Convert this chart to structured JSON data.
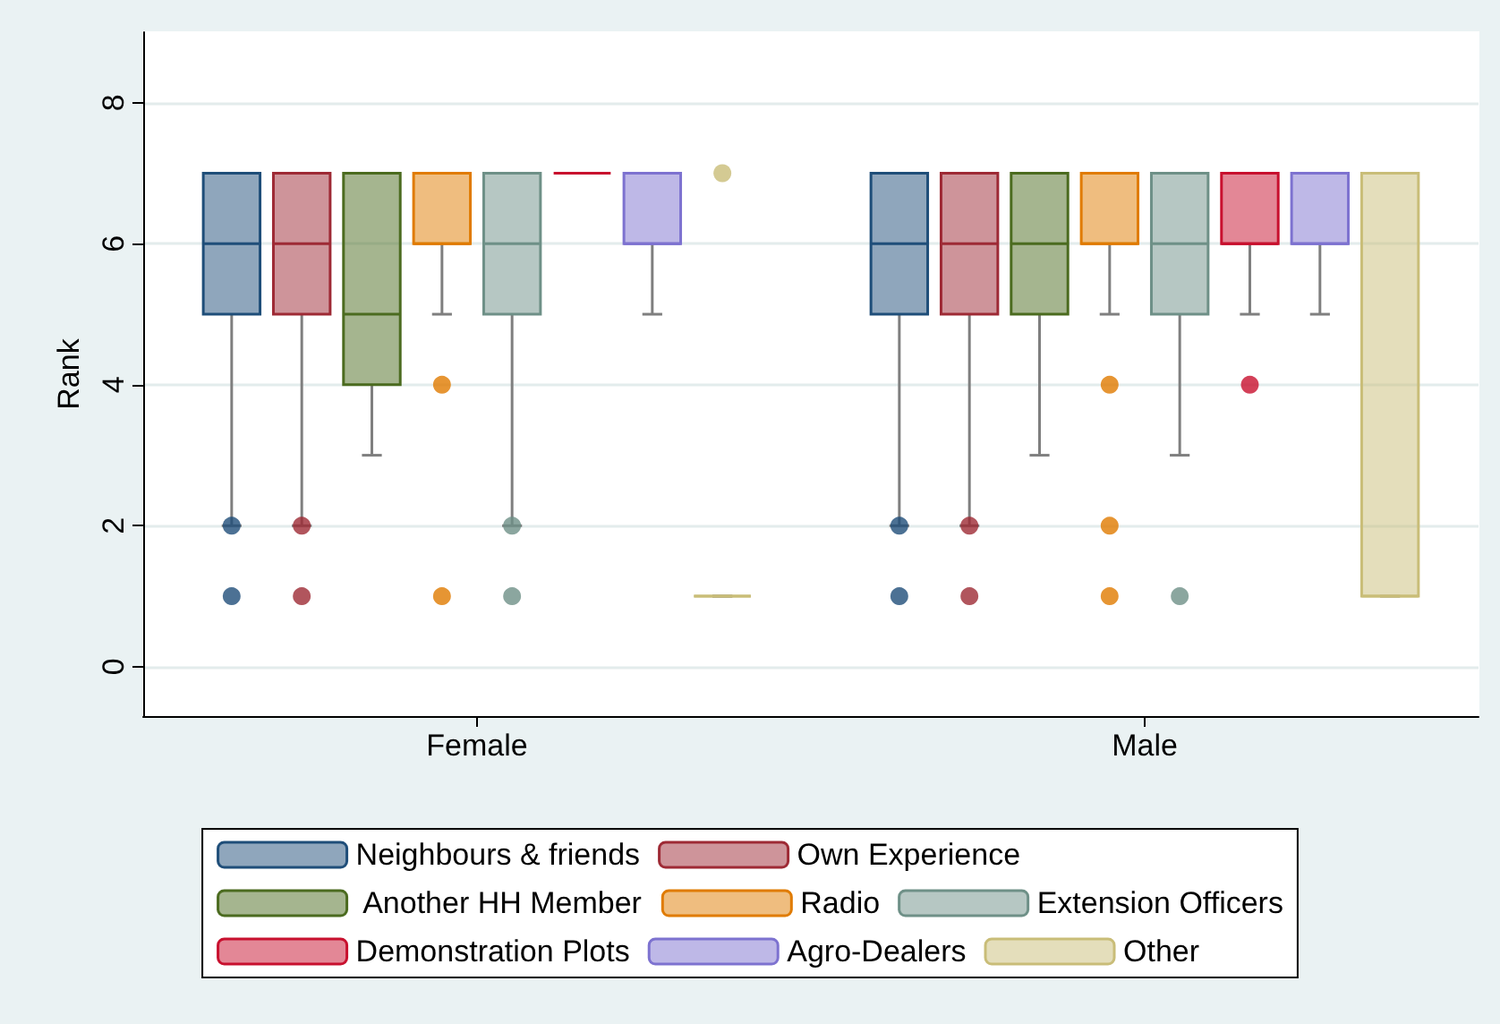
{
  "chart_data": {
    "type": "box",
    "ylabel": "Rank",
    "categories": [
      "Female",
      "Male"
    ],
    "ylim": [
      -0.7,
      9
    ],
    "yticks": [
      0,
      2,
      4,
      6,
      8
    ],
    "grid": "y",
    "legend": "bottom",
    "series": [
      {
        "name": "Neighbours & friends",
        "color": "#1f4e79",
        "boxes": [
          {
            "low": 2,
            "q1": 5,
            "median": 6,
            "q3": 7,
            "high": 7,
            "outliers": [
              2,
              1
            ]
          },
          {
            "low": 2,
            "q1": 5,
            "median": 6,
            "q3": 7,
            "high": 7,
            "outliers": [
              2,
              1
            ]
          }
        ]
      },
      {
        "name": "Own Experience",
        "color": "#9e2a35",
        "boxes": [
          {
            "low": 2,
            "q1": 5,
            "median": 6,
            "q3": 7,
            "high": 7,
            "outliers": [
              2,
              1
            ]
          },
          {
            "low": 2,
            "q1": 5,
            "median": 6,
            "q3": 7,
            "high": 7,
            "outliers": [
              2,
              1
            ]
          }
        ]
      },
      {
        "name": " Another HH Member",
        "color": "#4b6b1f",
        "boxes": [
          {
            "low": 3,
            "q1": 4,
            "median": 5,
            "q3": 7,
            "high": 7
          },
          {
            "low": 3,
            "q1": 5,
            "median": 6,
            "q3": 7,
            "high": 7
          }
        ]
      },
      {
        "name": "Radio",
        "color": "#e07b00",
        "boxes": [
          {
            "low": 5,
            "q1": 6,
            "median": 6,
            "q3": 7,
            "high": 7,
            "outliers": [
              4,
              1
            ]
          },
          {
            "low": 5,
            "q1": 6,
            "median": 6,
            "q3": 7,
            "high": 7,
            "outliers": [
              4,
              2,
              1
            ]
          }
        ]
      },
      {
        "name": "Extension Officers",
        "color": "#6e9087",
        "boxes": [
          {
            "low": 2,
            "q1": 5,
            "median": 6,
            "q3": 7,
            "high": 7,
            "outliers": [
              2,
              1
            ]
          },
          {
            "low": 3,
            "q1": 5,
            "median": 6,
            "q3": 7,
            "high": 7,
            "outliers": [
              1
            ]
          }
        ]
      },
      {
        "name": "Demonstration Plots",
        "color": "#c8102e",
        "boxes": [
          {
            "low": 7,
            "q1": 7,
            "median": 7,
            "q3": 7,
            "high": 7
          },
          {
            "low": 5,
            "q1": 6,
            "median": 6,
            "q3": 7,
            "high": 7,
            "outliers": [
              4
            ]
          }
        ]
      },
      {
        "name": "Agro-Dealers",
        "color": "#7d72d0",
        "boxes": [
          {
            "low": 5,
            "q1": 6,
            "median": 6,
            "q3": 7,
            "high": 7
          },
          {
            "low": 5,
            "q1": 6,
            "median": 6,
            "q3": 7,
            "high": 7
          }
        ]
      },
      {
        "name": "Other",
        "color": "#c9bd78",
        "boxes": [
          {
            "low": 1,
            "q1": 1,
            "median": 1,
            "q3": 1,
            "high": 1,
            "outliers": [
              7
            ]
          },
          {
            "low": 1,
            "q1": 1,
            "median": 1,
            "q3": 7,
            "high": 7
          }
        ]
      }
    ]
  }
}
